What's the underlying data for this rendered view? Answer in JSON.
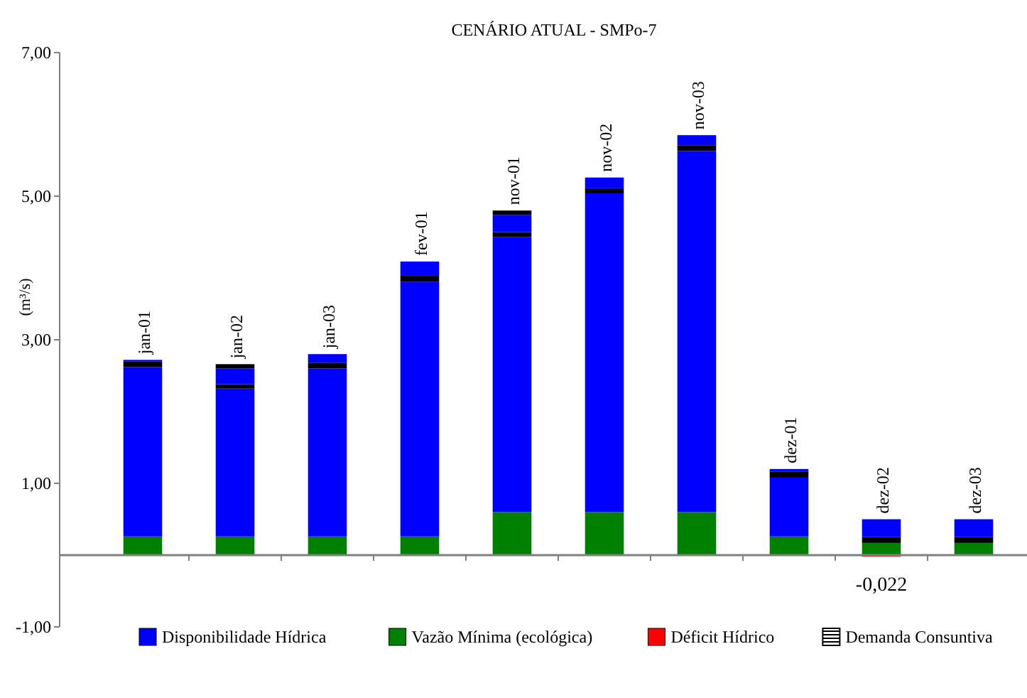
{
  "chart_data": {
    "type": "bar",
    "title": "CENÁRIO ATUAL - SMPo-7",
    "ylabel": "(m³/s)",
    "stacked": true,
    "categories": [
      "jan-01",
      "jan-02",
      "jan-03",
      "fev-01",
      "nov-01",
      "nov-02",
      "nov-03",
      "dez-01",
      "dez-02",
      "dez-03"
    ],
    "series": [
      {
        "name": "Vazão Mínima (ecológica)",
        "color": "#008000",
        "values": [
          0.26,
          0.26,
          0.26,
          0.26,
          0.6,
          0.6,
          0.6,
          0.26,
          0.17,
          0.17
        ]
      },
      {
        "name": "Disponibilidade Hídrica",
        "color": "#0000ff",
        "values": [
          2.36,
          2.06,
          2.34,
          3.55,
          3.83,
          4.44,
          5.03,
          0.82,
          null,
          null
        ]
      },
      {
        "name": "Demanda Consuntiva",
        "color": "#000000",
        "values": [
          0.08,
          0.06,
          0.08,
          0.08,
          0.07,
          0.07,
          0.08,
          0.08,
          0.08,
          0.08
        ]
      },
      {
        "color": "#0000ff",
        "values": [
          0.02,
          0.22,
          0.12,
          0.2,
          0.24,
          0.15,
          0.14,
          0.04,
          0.25,
          0.25
        ]
      },
      {
        "color": "#000000",
        "values": [
          null,
          0.06,
          null,
          null,
          0.06,
          null,
          null,
          null,
          null,
          null
        ]
      },
      {
        "name": "Déficit Hídrico",
        "color": "#ff0000",
        "values": [
          null,
          null,
          null,
          null,
          null,
          null,
          null,
          null,
          -0.022,
          null
        ],
        "value_labels": [
          null,
          null,
          null,
          null,
          null,
          null,
          null,
          null,
          "-0,022",
          null
        ]
      }
    ],
    "ylim": [
      -1,
      7
    ],
    "yticks": [
      {
        "value": -1,
        "label": "-1,00"
      },
      {
        "value": 1,
        "label": "1,00"
      },
      {
        "value": 3,
        "label": "3,00"
      },
      {
        "value": 5,
        "label": "5,00"
      },
      {
        "value": 7,
        "label": "7,00"
      }
    ],
    "legend": "bottom"
  }
}
